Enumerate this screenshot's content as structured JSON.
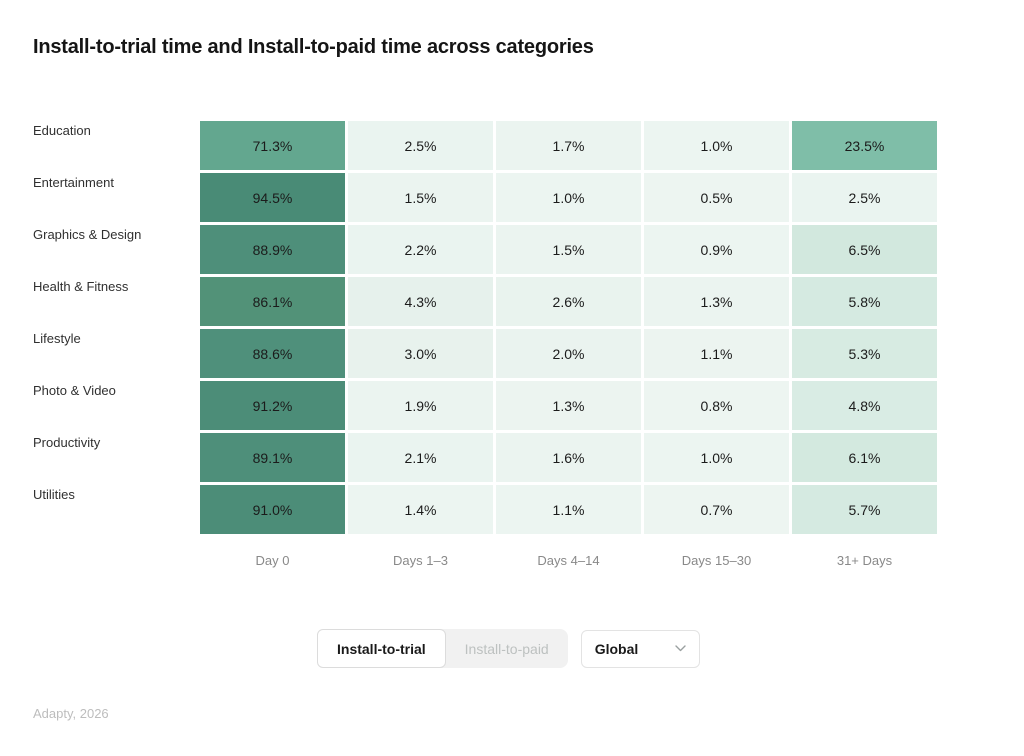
{
  "title": "Install-to-trial time and Install-to-paid time across categories",
  "chart_data": {
    "type": "heatmap",
    "title": "Install-to-trial time and Install-to-paid time across categories",
    "unit": "%",
    "legend_position": "none",
    "columns": [
      "Day 0",
      "Days 1–3",
      "Days 4–14",
      "Days 15–30",
      "31+ Days"
    ],
    "rows": [
      {
        "label": "Education",
        "values": [
          71.3,
          2.5,
          1.7,
          1.0,
          23.5
        ],
        "colors": [
          "#63A78F",
          "#EAF4F0",
          "#EBF4F0",
          "#ECF5F1",
          "#7FBEA8"
        ]
      },
      {
        "label": "Entertainment",
        "values": [
          94.5,
          1.5,
          1.0,
          0.5,
          2.5
        ],
        "colors": [
          "#498B76",
          "#EBF4F0",
          "#ECF5F1",
          "#EDF5F1",
          "#EAF4F0"
        ]
      },
      {
        "label": "Graphics & Design",
        "values": [
          88.9,
          2.2,
          1.5,
          0.9,
          6.5
        ],
        "colors": [
          "#4E8F7A",
          "#EAF4F0",
          "#EBF4F0",
          "#ECF5F1",
          "#D2E8DE"
        ]
      },
      {
        "label": "Health & Fitness",
        "values": [
          86.1,
          4.3,
          2.6,
          1.3,
          5.8
        ],
        "colors": [
          "#529278",
          "#E6F1EC",
          "#E9F3EE",
          "#EBF4F0",
          "#D5EAE1"
        ]
      },
      {
        "label": "Lifestyle",
        "values": [
          88.6,
          3.0,
          2.0,
          1.1,
          5.3
        ],
        "colors": [
          "#4F907B",
          "#E8F2ED",
          "#EAF3EF",
          "#ECF4F0",
          "#D7EBE2"
        ]
      },
      {
        "label": "Photo & Video",
        "values": [
          91.2,
          1.9,
          1.3,
          0.8,
          4.8
        ],
        "colors": [
          "#4C8D78",
          "#EBF4F0",
          "#ECF4F0",
          "#EDF5F1",
          "#D9ECE4"
        ]
      },
      {
        "label": "Productivity",
        "values": [
          89.1,
          2.1,
          1.6,
          1.0,
          6.1
        ],
        "colors": [
          "#4E8F7A",
          "#EAF4F0",
          "#EBF4F0",
          "#ECF5F1",
          "#D3E9DF"
        ]
      },
      {
        "label": "Utilities",
        "values": [
          91.0,
          1.4,
          1.1,
          0.7,
          5.7
        ],
        "colors": [
          "#4C8D78",
          "#ECF5F1",
          "#ECF5F1",
          "#EDF5F1",
          "#D5EAE1"
        ]
      }
    ],
    "palette": {
      "low": "#EDF5F1",
      "high": "#488A75",
      "value_text": "#1B1B1B"
    }
  },
  "controls": {
    "tabs": [
      {
        "label": "Install-to-trial",
        "active": true
      },
      {
        "label": "Install-to-paid",
        "active": false
      }
    ],
    "region_select": {
      "value": "Global",
      "icon": "chevron-down-icon"
    }
  },
  "footer": {
    "source": "Adapty, 2026"
  }
}
